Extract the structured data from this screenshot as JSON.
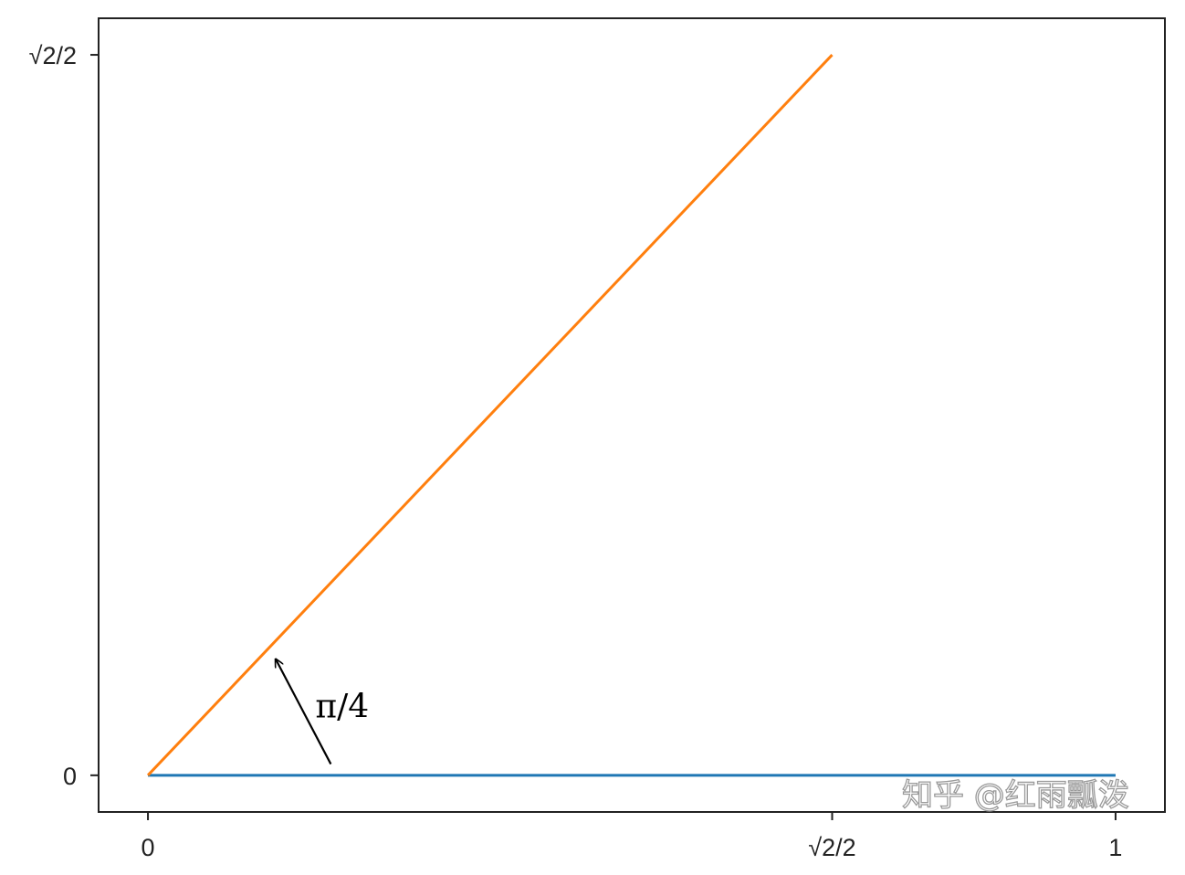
{
  "chart_data": {
    "type": "line",
    "title": "",
    "xlabel": "",
    "ylabel": "",
    "xlim": [
      -0.051,
      1.051
    ],
    "ylim": [
      -0.036,
      0.743
    ],
    "grid": false,
    "x_ticks": [
      {
        "value": 0,
        "label": "0"
      },
      {
        "value": 0.7071,
        "label": "√2/2"
      },
      {
        "value": 1,
        "label": "1"
      }
    ],
    "y_ticks": [
      {
        "value": 0,
        "label": "0"
      },
      {
        "value": 0.7071,
        "label": "√2/2"
      }
    ],
    "series": [
      {
        "color": "#1f77b4",
        "x": [
          0,
          1
        ],
        "y": [
          0,
          0
        ]
      },
      {
        "color": "#ff7f0e",
        "x": [
          0,
          0.7071
        ],
        "y": [
          0,
          0.7071
        ]
      }
    ],
    "annotations": [
      {
        "text": "π/4",
        "text_xy": [
          0.173,
          0.057
        ],
        "arrow_from": [
          0.189,
          0.011
        ],
        "arrow_to": [
          0.132,
          0.114
        ]
      }
    ]
  },
  "watermark": "知乎 @红雨瓢泼"
}
